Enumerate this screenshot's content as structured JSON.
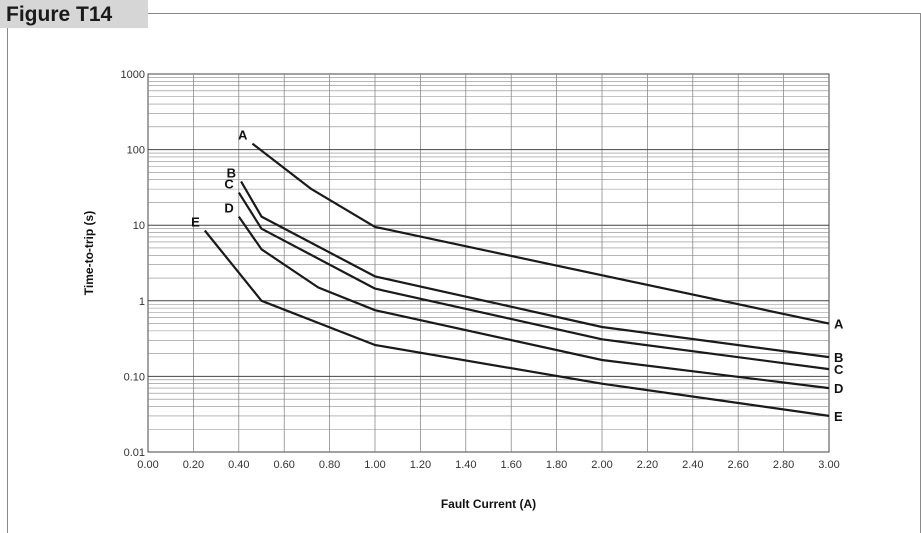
{
  "figure": {
    "label": "Figure T14"
  },
  "chart_data": {
    "type": "line",
    "xlabel": "Fault Current (A)",
    "ylabel": "Time-to-trip (s)",
    "xlim": [
      0,
      3
    ],
    "ylim": [
      0.01,
      1000
    ],
    "yscale": "log",
    "grid": true,
    "x_ticks": [
      "0.00",
      "0.20",
      "0.40",
      "0.60",
      "0.80",
      "1.00",
      "1.20",
      "1.40",
      "1.60",
      "1.80",
      "2.00",
      "2.20",
      "2.40",
      "2.60",
      "2.80",
      "3.00"
    ],
    "y_ticks": [
      "0.01",
      "0.10",
      "1",
      "10",
      "100",
      "1000"
    ],
    "series": [
      {
        "name": "A",
        "points": [
          [
            0.46,
            120
          ],
          [
            0.72,
            30
          ],
          [
            1.0,
            9.5
          ],
          [
            3.0,
            0.5
          ]
        ]
      },
      {
        "name": "B",
        "points": [
          [
            0.41,
            38
          ],
          [
            0.5,
            13
          ],
          [
            1.0,
            2.1
          ],
          [
            2.0,
            0.45
          ],
          [
            3.0,
            0.18
          ]
        ]
      },
      {
        "name": "C",
        "points": [
          [
            0.4,
            27
          ],
          [
            0.5,
            9
          ],
          [
            1.0,
            1.45
          ],
          [
            2.0,
            0.31
          ],
          [
            3.0,
            0.125
          ]
        ]
      },
      {
        "name": "D",
        "points": [
          [
            0.4,
            13
          ],
          [
            0.5,
            4.8
          ],
          [
            0.75,
            1.5
          ],
          [
            1.0,
            0.75
          ],
          [
            2.0,
            0.165
          ],
          [
            3.0,
            0.07
          ]
        ]
      },
      {
        "name": "E",
        "points": [
          [
            0.25,
            8.5
          ],
          [
            0.5,
            1.0
          ],
          [
            1.0,
            0.26
          ],
          [
            2.0,
            0.08
          ],
          [
            3.0,
            0.03
          ]
        ]
      }
    ]
  }
}
